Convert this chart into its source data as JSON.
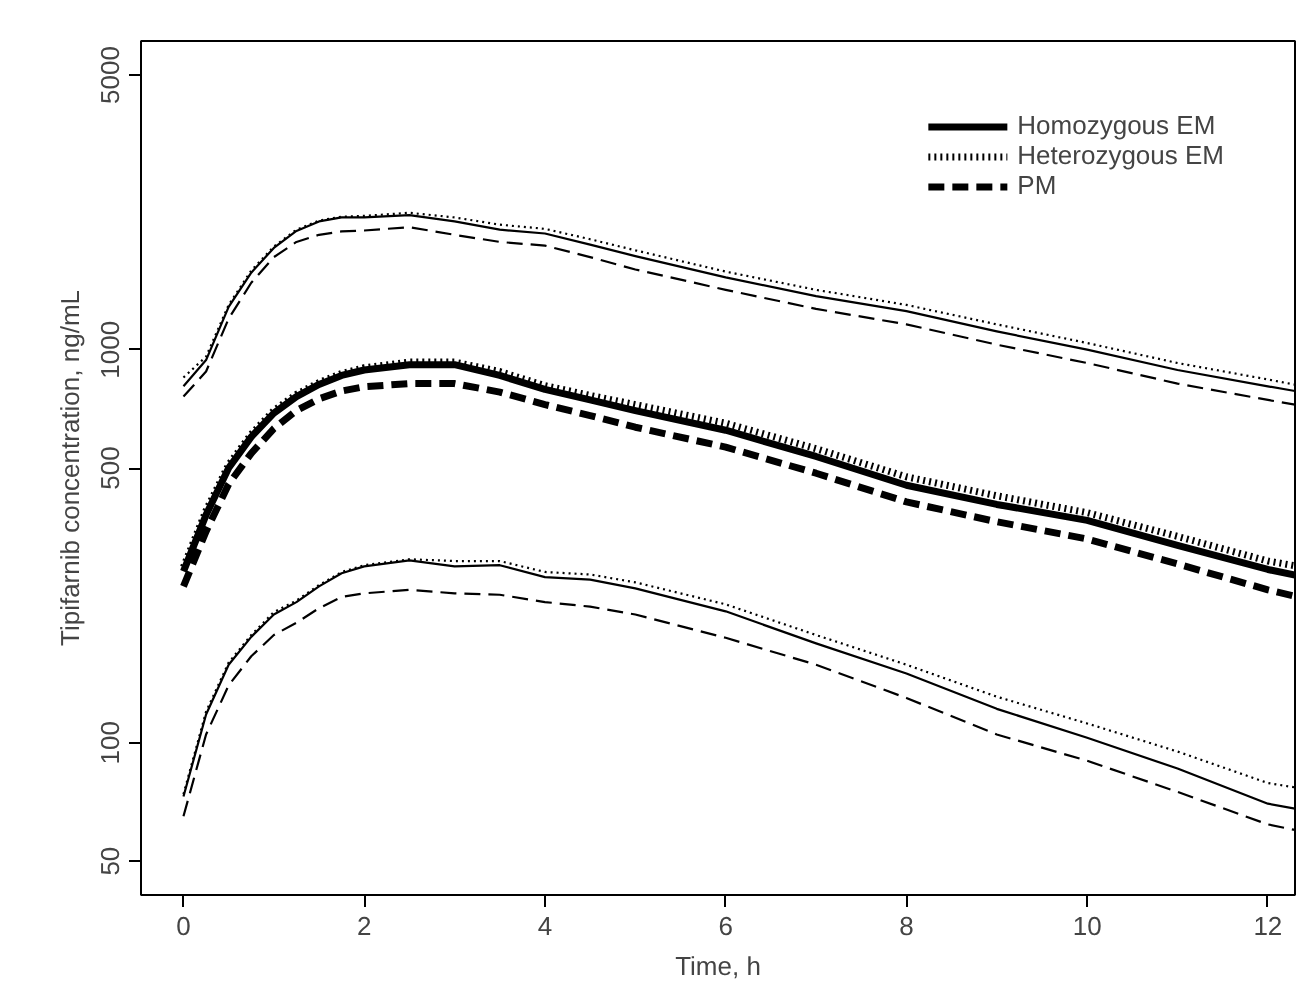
{
  "chart_data": {
    "type": "line",
    "xlabel": "Time, h",
    "ylabel": "Tipifarnib concentration, ng/mL",
    "log": "y",
    "grid": false,
    "legend": "top right",
    "marker": "none",
    "x": [
      0,
      0.25,
      0.5,
      0.75,
      1,
      1.25,
      1.5,
      1.75,
      2,
      2.5,
      3,
      3.5,
      4,
      4.5,
      5,
      6,
      7,
      8,
      9,
      10,
      11,
      12,
      12.3
    ],
    "xlim": [
      -0.47,
      12.3
    ],
    "xticks": [
      0,
      2,
      4,
      6,
      8,
      10,
      12
    ],
    "ylim": [
      41,
      6100
    ],
    "yticks": [
      50,
      100,
      500,
      1000,
      5000
    ],
    "series": [
      {
        "color": "#000000",
        "line_style": "solid",
        "values": [
          807,
          941,
          1285,
          1570,
          1815,
          2005,
          2120,
          2170,
          2170,
          2200,
          2120,
          2020,
          1975,
          1850,
          1730,
          1527,
          1369,
          1254,
          1113,
          1000,
          888,
          807,
          785
        ]
      },
      {
        "color": "#000000",
        "line_style": "dotted",
        "values": [
          850,
          960,
          1300,
          1590,
          1830,
          2020,
          2130,
          2180,
          2190,
          2230,
          2170,
          2080,
          2030,
          1910,
          1790,
          1580,
          1420,
          1300,
          1160,
          1040,
          925,
          840,
          815
        ]
      },
      {
        "color": "#000000",
        "line_style": "dashed",
        "values": [
          760,
          880,
          1200,
          1480,
          1720,
          1880,
          1960,
          2000,
          2010,
          2050,
          1960,
          1880,
          1840,
          1720,
          1600,
          1420,
          1270,
          1160,
          1030,
          925,
          820,
          745,
          725
        ]
      },
      {
        "name": "Homozygous EM",
        "color": "#000000",
        "line_style": "solid",
        "values": [
          273,
          380,
          500,
          600,
          690,
          760,
          816,
          860,
          888,
          916,
          916,
          860,
          793,
          745,
          700,
          624,
          535,
          452,
          404,
          368,
          318,
          276,
          267
        ]
      },
      {
        "name": "Heterozygous EM",
        "color": "#000000",
        "line_style": "dotted",
        "values": [
          280,
          390,
          510,
          610,
          700,
          770,
          825,
          870,
          900,
          930,
          930,
          880,
          810,
          765,
          725,
          650,
          560,
          475,
          425,
          385,
          335,
          290,
          282
        ]
      },
      {
        "name": "PM",
        "color": "#000000",
        "line_style": "dashed",
        "values": [
          250,
          345,
          455,
          545,
          630,
          700,
          750,
          785,
          805,
          820,
          820,
          780,
          725,
          680,
          635,
          565,
          485,
          410,
          365,
          330,
          285,
          245,
          236
        ]
      },
      {
        "color": "#000000",
        "line_style": "solid",
        "values": [
          73,
          118,
          158,
          186,
          212,
          228,
          250,
          270,
          281,
          291,
          281,
          283,
          264,
          260,
          247,
          216,
          179,
          150,
          122,
          103,
          86,
          70,
          68
        ]
      },
      {
        "color": "#000000",
        "line_style": "dotted",
        "values": [
          74,
          120,
          160,
          188,
          215,
          230,
          252,
          272,
          283,
          293,
          290,
          290,
          272,
          268,
          256,
          225,
          188,
          158,
          131,
          112,
          95,
          79,
          77
        ]
      },
      {
        "color": "#000000",
        "line_style": "dashed",
        "values": [
          65,
          105,
          140,
          166,
          188,
          202,
          220,
          235,
          240,
          245,
          240,
          238,
          228,
          222,
          212,
          185,
          158,
          130,
          105,
          90,
          75,
          62,
          60
        ]
      }
    ]
  }
}
